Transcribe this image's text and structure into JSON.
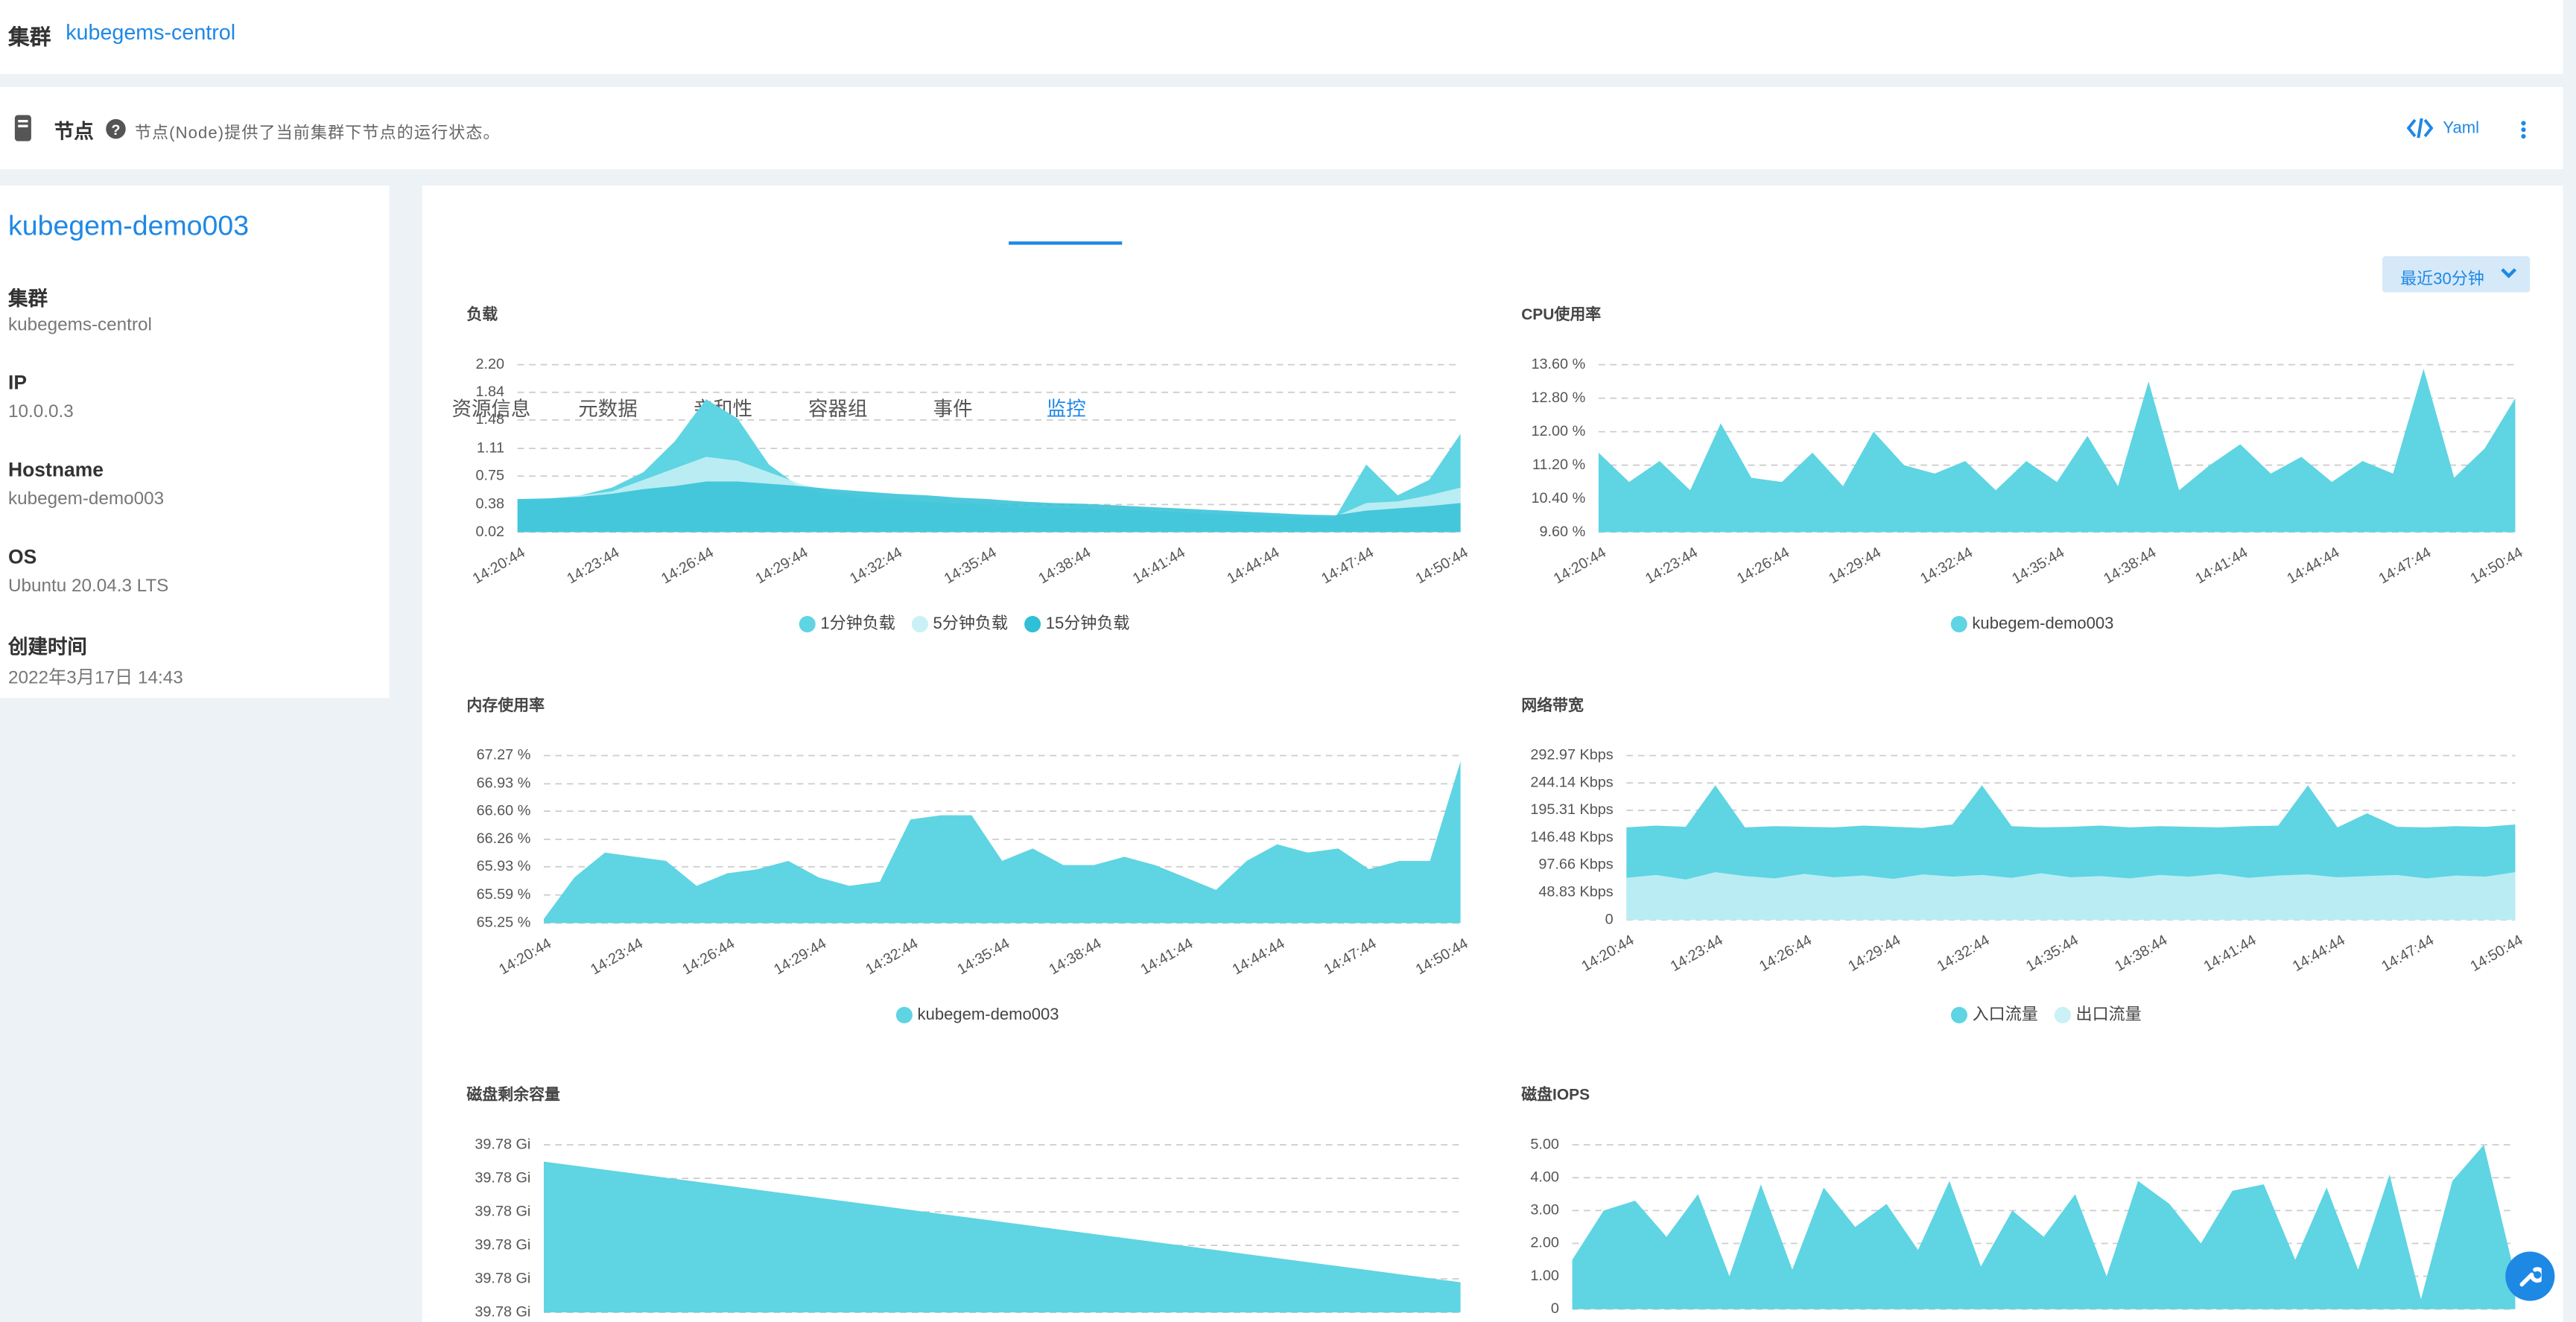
{
  "cluster": {
    "label": "集群",
    "name": "kubegems-centrol"
  },
  "section": {
    "title": "节点",
    "description": "节点(Node)提供了当前集群下节点的运行状态。",
    "yaml": "Yaml"
  },
  "node": {
    "name": "kubegem-demo003",
    "fields": [
      {
        "label": "集群",
        "value": "kubegems-centrol"
      },
      {
        "label": "IP",
        "value": "10.0.0.3"
      },
      {
        "label": "Hostname",
        "value": "kubegem-demo003"
      },
      {
        "label": "OS",
        "value": "Ubuntu 20.04.3 LTS"
      },
      {
        "label": "创建时间",
        "value": "2022年3月17日 14:43"
      }
    ]
  },
  "tabs": [
    "资源信息",
    "元数据",
    "亲和性",
    "容器组",
    "事件",
    "监控"
  ],
  "active_tab": 5,
  "time_range": "最近30分钟",
  "chart_data": [
    {
      "type": "area",
      "title": "负载",
      "grid": true,
      "categories": [
        "14:20:44",
        null,
        null,
        "14:23:44",
        null,
        null,
        "14:26:44",
        null,
        null,
        "14:29:44",
        null,
        null,
        "14:32:44",
        null,
        null,
        "14:35:44",
        null,
        null,
        "14:38:44",
        null,
        null,
        "14:41:44",
        null,
        null,
        "14:44:44",
        null,
        null,
        "14:47:44",
        null,
        null,
        "14:50:44"
      ],
      "ylim": [
        0.02,
        2.2
      ],
      "yticks": [
        0.02,
        0.38,
        0.75,
        1.11,
        1.48,
        1.84,
        {
          "value": 2.2,
          "label": "2.20"
        }
      ],
      "series": [
        {
          "name": "1分钟负载",
          "color": "#5fd4e3",
          "values": [
            0.45,
            0.45,
            0.5,
            0.6,
            0.8,
            1.2,
            1.75,
            1.5,
            0.9,
            0.6,
            0.5,
            0.45,
            0.42,
            0.4,
            0.38,
            0.35,
            0.33,
            0.32,
            0.32,
            0.3,
            0.3,
            0.28,
            0.26,
            0.24,
            0.22,
            0.2,
            0.2,
            0.9,
            0.5,
            0.7,
            1.3
          ]
        },
        {
          "name": "5分钟负载",
          "color": "#c9f1f6",
          "values": [
            0.45,
            0.46,
            0.5,
            0.55,
            0.7,
            0.85,
            1.0,
            0.95,
            0.8,
            0.65,
            0.55,
            0.5,
            0.45,
            0.42,
            0.4,
            0.38,
            0.36,
            0.34,
            0.33,
            0.32,
            0.3,
            0.28,
            0.26,
            0.25,
            0.23,
            0.22,
            0.22,
            0.4,
            0.42,
            0.5,
            0.6
          ]
        },
        {
          "name": "15分钟负载",
          "color": "#2fbfd6",
          "values": [
            0.45,
            0.46,
            0.48,
            0.52,
            0.58,
            0.62,
            0.68,
            0.68,
            0.65,
            0.62,
            0.58,
            0.55,
            0.52,
            0.5,
            0.47,
            0.45,
            0.42,
            0.4,
            0.39,
            0.37,
            0.35,
            0.33,
            0.31,
            0.29,
            0.27,
            0.25,
            0.24,
            0.3,
            0.33,
            0.36,
            0.4
          ]
        }
      ]
    },
    {
      "type": "area",
      "title": "CPU使用率",
      "grid": true,
      "categories": [
        "14:20:44",
        null,
        null,
        "14:23:44",
        null,
        null,
        "14:26:44",
        null,
        null,
        "14:29:44",
        null,
        null,
        "14:32:44",
        null,
        null,
        "14:35:44",
        null,
        null,
        "14:38:44",
        null,
        null,
        "14:41:44",
        null,
        null,
        "14:44:44",
        null,
        null,
        "14:47:44",
        null,
        null,
        "14:50:44"
      ],
      "ylim": [
        9.6,
        13.6
      ],
      "yticks": [
        {
          "value": 9.6,
          "label": "9.60 %"
        },
        {
          "value": 10.4,
          "label": "10.40 %"
        },
        {
          "value": 11.2,
          "label": "11.20 %"
        },
        {
          "value": 12,
          "label": "12.00 %"
        },
        {
          "value": 12.8,
          "label": "12.80 %"
        },
        {
          "value": 13.6,
          "label": "13.60 %"
        }
      ],
      "series": [
        {
          "name": "kubegem-demo003",
          "color": "#5fd4e3",
          "values": [
            11.5,
            10.8,
            11.3,
            10.6,
            12.2,
            10.9,
            10.8,
            11.5,
            10.7,
            12.0,
            11.2,
            11.0,
            11.3,
            10.6,
            11.3,
            10.8,
            11.9,
            10.7,
            13.2,
            10.6,
            11.2,
            11.7,
            11.0,
            11.4,
            10.8,
            11.3,
            11.0,
            13.5,
            10.9,
            11.6,
            12.8
          ]
        }
      ]
    },
    {
      "type": "area",
      "title": "内存使用率",
      "grid": true,
      "categories": [
        "14:20:44",
        null,
        null,
        "14:23:44",
        null,
        null,
        "14:26:44",
        null,
        null,
        "14:29:44",
        null,
        null,
        "14:32:44",
        null,
        null,
        "14:35:44",
        null,
        null,
        "14:38:44",
        null,
        null,
        "14:41:44",
        null,
        null,
        "14:44:44",
        null,
        null,
        "14:47:44",
        null,
        null,
        "14:50:44"
      ],
      "ylim": [
        65.25,
        67.27
      ],
      "yticks": [
        {
          "value": 65.25,
          "label": "65.25 %"
        },
        {
          "value": 65.59,
          "label": "65.59 %"
        },
        {
          "value": 65.93,
          "label": "65.93 %"
        },
        {
          "value": 66.26,
          "label": "66.26 %"
        },
        {
          "value": 66.6,
          "label": "66.60 %"
        },
        {
          "value": 66.93,
          "label": "66.93 %"
        },
        {
          "value": 67.27,
          "label": "67.27 %"
        }
      ],
      "series": [
        {
          "name": "kubegem-demo003",
          "color": "#5fd4e3",
          "values": [
            65.3,
            65.8,
            66.1,
            66.05,
            66.0,
            65.7,
            65.85,
            65.9,
            66.0,
            65.8,
            65.7,
            65.75,
            66.5,
            66.55,
            66.55,
            66.0,
            66.15,
            65.95,
            65.95,
            66.05,
            65.95,
            65.8,
            65.65,
            66.0,
            66.2,
            66.1,
            66.15,
            65.9,
            66.0,
            66.0,
            67.2
          ]
        }
      ]
    },
    {
      "type": "area",
      "title": "网络带宽",
      "grid": true,
      "categories": [
        "14:20:44",
        null,
        null,
        "14:23:44",
        null,
        null,
        "14:26:44",
        null,
        null,
        "14:29:44",
        null,
        null,
        "14:32:44",
        null,
        null,
        "14:35:44",
        null,
        null,
        "14:38:44",
        null,
        null,
        "14:41:44",
        null,
        null,
        "14:44:44",
        null,
        null,
        "14:47:44",
        null,
        null,
        "14:50:44"
      ],
      "ylim": [
        0,
        292.97
      ],
      "yticks": [
        0,
        {
          "value": 48.83,
          "label": "48.83 Kbps"
        },
        {
          "value": 97.66,
          "label": "97.66 Kbps"
        },
        {
          "value": 146.48,
          "label": "146.48 Kbps"
        },
        {
          "value": 195.31,
          "label": "195.31 Kbps"
        },
        {
          "value": 244.14,
          "label": "244.14 Kbps"
        },
        {
          "value": 292.97,
          "label": "292.97 Kbps"
        }
      ],
      "series": [
        {
          "name": "入口流量",
          "color": "#5fd4e3",
          "values": [
            165,
            168,
            166,
            240,
            165,
            167,
            166,
            165,
            168,
            166,
            164,
            170,
            240,
            167,
            165,
            166,
            168,
            165,
            167,
            166,
            165,
            167,
            168,
            240,
            165,
            190,
            166,
            165,
            167,
            166,
            170
          ]
        },
        {
          "name": "出口流量",
          "color": "#c9f1f6",
          "values": [
            75,
            80,
            72,
            85,
            78,
            74,
            82,
            76,
            79,
            73,
            81,
            77,
            80,
            75,
            83,
            76,
            78,
            74,
            80,
            77,
            82,
            75,
            79,
            81,
            76,
            78,
            80,
            74,
            79,
            77,
            85
          ]
        }
      ]
    },
    {
      "type": "area",
      "title": "磁盘剩余容量",
      "grid": true,
      "ylim": [
        39.776,
        39.781
      ],
      "yticks": [
        {
          "value": 39.776,
          "label": "39.78 Gi"
        },
        {
          "value": 39.777,
          "label": "39.78 Gi"
        },
        {
          "value": 39.778,
          "label": "39.78 Gi"
        },
        {
          "value": 39.779,
          "label": "39.78 Gi"
        },
        {
          "value": 39.78,
          "label": "39.78 Gi"
        },
        {
          "value": 39.781,
          "label": "39.78 Gi"
        }
      ],
      "color": "#5fd4e3",
      "values": [
        39.7805,
        39.78038,
        39.78026,
        39.78014,
        39.78002,
        39.7799,
        39.77978,
        39.77966,
        39.77954,
        39.77942,
        39.7793,
        39.77918,
        39.77906,
        39.77894,
        39.77882,
        39.7787,
        39.77858,
        39.77846,
        39.77834,
        39.77822,
        39.7781,
        39.77798,
        39.77786,
        39.77774,
        39.77762,
        39.7775,
        39.77738,
        39.77726,
        39.77714,
        39.77702,
        39.7769
      ]
    },
    {
      "type": "area",
      "title": "磁盘IOPS",
      "grid": true,
      "ylim": [
        0,
        5
      ],
      "yticks": [
        0,
        {
          "value": 1,
          "label": "1.00"
        },
        {
          "value": 2,
          "label": "2.00"
        },
        {
          "value": 3,
          "label": "3.00"
        },
        {
          "value": 4,
          "label": "4.00"
        },
        {
          "value": 5,
          "label": "5.00"
        }
      ],
      "color": "#5fd4e3",
      "values": [
        1.5,
        3.0,
        3.3,
        2.2,
        3.5,
        1.0,
        3.8,
        1.2,
        3.7,
        2.5,
        3.2,
        1.8,
        3.9,
        1.3,
        3.0,
        2.2,
        3.5,
        1.0,
        3.9,
        3.2,
        2.0,
        3.6,
        3.8,
        1.5,
        3.7,
        1.2,
        4.1,
        0.3,
        3.9,
        5.0,
        1.0
      ]
    }
  ]
}
